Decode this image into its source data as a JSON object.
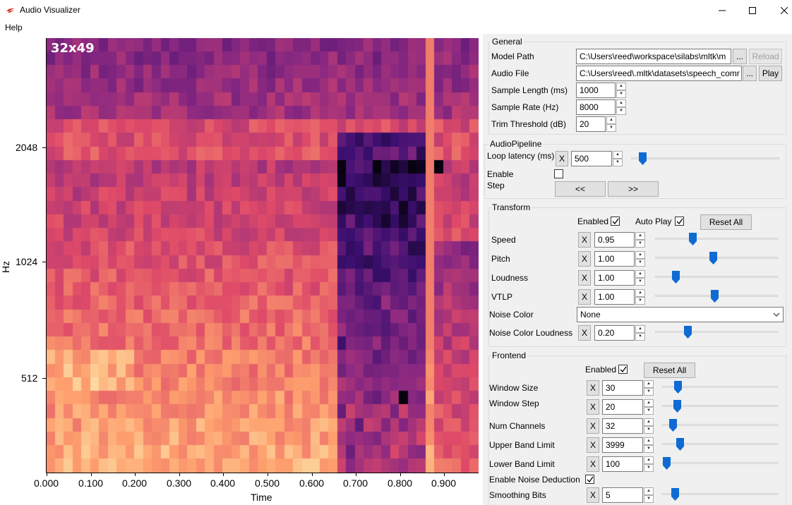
{
  "window": {
    "title": "Audio Visualizer",
    "minimize_glyph": "—",
    "maximize_glyph": "☐",
    "close_glyph": "✕"
  },
  "menu": {
    "help": "Help"
  },
  "plot": {
    "size_label": "32x49",
    "ylabel": "Hz",
    "xlabel": "Time",
    "yticks": [
      "2048",
      "1024",
      "512"
    ],
    "xticks": [
      "0.000",
      "0.100",
      "0.200",
      "0.300",
      "0.400",
      "0.500",
      "0.600",
      "0.700",
      "0.800",
      "0.900"
    ],
    "colormap": [
      "#000004",
      "#3b0f70",
      "#8c2981",
      "#de4968",
      "#fe9f6d",
      "#fcfdbf"
    ]
  },
  "general": {
    "title": "General",
    "model_path_label": "Model Path",
    "model_path_value": "C:\\Users\\reed\\workspace\\silabs\\mltk\\m",
    "browse_label": "...",
    "reload_label": "Reload",
    "audio_file_label": "Audio File",
    "audio_file_value": "C:\\Users\\reed\\.mltk\\datasets\\speech_comr",
    "play_label": "Play",
    "sample_length_label": "Sample Length (ms)",
    "sample_length_value": "1000",
    "sample_rate_label": "Sample Rate (Hz)",
    "sample_rate_value": "8000",
    "trim_threshold_label": "Trim Threshold (dB)",
    "trim_threshold_value": "20"
  },
  "pipeline": {
    "title": "AudioPipeline",
    "loop_latency_label": "Loop latency (ms)",
    "x_label": "X",
    "loop_latency_value": "500",
    "enable_label": "Enable",
    "step_label": "Step",
    "prev_label": "<<",
    "next_label": ">>"
  },
  "transform": {
    "title": "Transform",
    "enabled_label": "Enabled",
    "autoplay_label": "Auto Play",
    "reset_label": "Reset All",
    "x_label": "X",
    "speed_label": "Speed",
    "speed_value": "0.95",
    "pitch_label": "Pitch",
    "pitch_value": "1.00",
    "loudness_label": "Loudness",
    "loudness_value": "1.00",
    "vtlp_label": "VTLP",
    "vtlp_value": "1.00",
    "noise_color_label": "Noise Color",
    "noise_color_value": "None",
    "noise_loudness_label": "Noise Color Loudness",
    "noise_loudness_value": "0.20"
  },
  "frontend": {
    "title": "Frontend",
    "enabled_label": "Enabled",
    "reset_label": "Reset All",
    "x_label": "X",
    "window_size_label": "Window Size",
    "window_size_value": "30",
    "window_step_label": "Window Step",
    "window_step_value": "20",
    "num_channels_label": "Num Channels",
    "num_channels_value": "32",
    "upper_band_label": "Upper Band Limit",
    "upper_band_value": "3999",
    "lower_band_label": "Lower Band Limit",
    "lower_band_value": "100",
    "noise_deduction_label": "Enable Noise Deduction",
    "smoothing_bits_label": "Smoothing Bits",
    "smoothing_bits_value": "5"
  }
}
